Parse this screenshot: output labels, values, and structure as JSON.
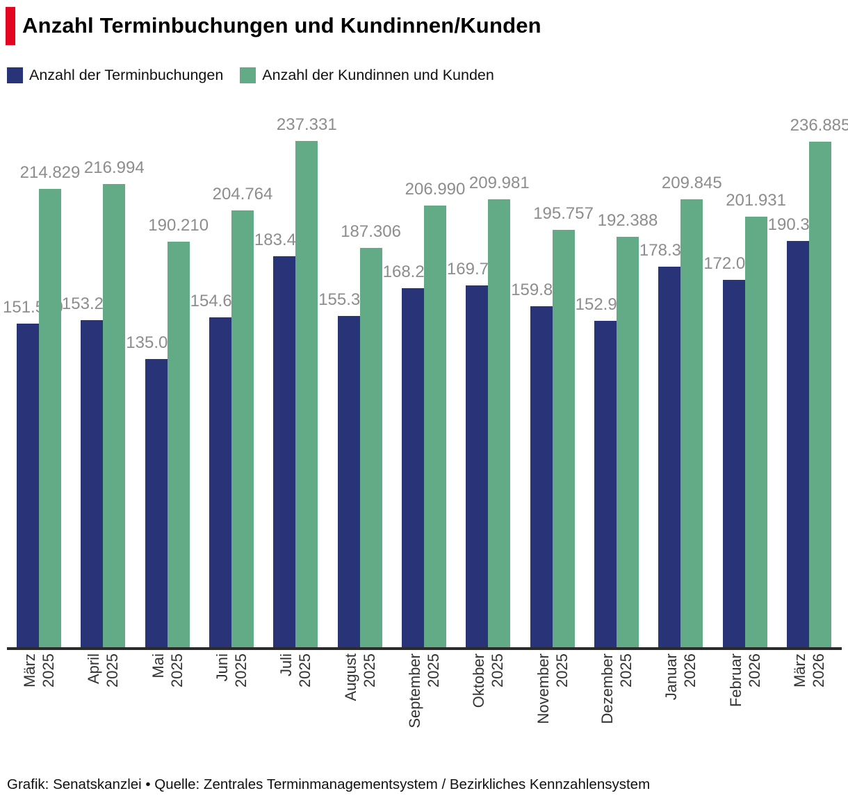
{
  "header": {
    "title": "Anzahl Terminbuchungen und Kundinnen/Kunden",
    "accent_color": "#e40521"
  },
  "legend": {
    "items": [
      {
        "label": "Anzahl der Terminbuchungen",
        "color": "#293377"
      },
      {
        "label": "Anzahl der Kundinnen und Kunden",
        "color": "#63ab86"
      }
    ]
  },
  "chart_data": {
    "type": "bar",
    "title": "Anzahl Terminbuchungen und Kundinnen/Kunden",
    "categories": [
      {
        "month": "März",
        "year": "2025"
      },
      {
        "month": "April",
        "year": "2025"
      },
      {
        "month": "Mai",
        "year": "2025"
      },
      {
        "month": "Juni",
        "year": "2025"
      },
      {
        "month": "Juli",
        "year": "2025"
      },
      {
        "month": "August",
        "year": "2025"
      },
      {
        "month": "September",
        "year": "2025"
      },
      {
        "month": "Oktober",
        "year": "2025"
      },
      {
        "month": "November",
        "year": "2025"
      },
      {
        "month": "Dezember",
        "year": "2025"
      },
      {
        "month": "Januar",
        "year": "2026"
      },
      {
        "month": "Februar",
        "year": "2026"
      },
      {
        "month": "März",
        "year": "2026"
      }
    ],
    "series": [
      {
        "name": "Anzahl der Terminbuchungen",
        "color": "#293377",
        "values": [
          151570,
          153208,
          135027,
          154621,
          183404,
          155394,
          168206,
          169707,
          159816,
          152973,
          178331,
          172080,
          190333
        ],
        "labels": [
          "151.570",
          "153.208",
          "135.027",
          "154.621",
          "183.404",
          "155.394",
          "168.206",
          "169.707",
          "159.816",
          "152.973",
          "178.331",
          "172.080",
          "190.333"
        ]
      },
      {
        "name": "Anzahl der Kundinnen und Kunden",
        "color": "#63ab86",
        "values": [
          214829,
          216994,
          190210,
          204764,
          237331,
          187306,
          206990,
          209981,
          195757,
          192388,
          209845,
          201931,
          236885
        ],
        "labels": [
          "214.829",
          "216.994",
          "190.210",
          "204.764",
          "237.331",
          "187.306",
          "206.990",
          "209.981",
          "195.757",
          "192.388",
          "209.845",
          "201.931",
          "236.885"
        ]
      }
    ],
    "xlabel": "",
    "ylabel": "",
    "ylim": [
      0,
      250000
    ],
    "grid": "off",
    "y_axis_visible": false,
    "legend_position": "top",
    "value_label_color": "#8d8d8d",
    "axis_line_color": "#2b2b2b"
  },
  "footer": {
    "text": "Grafik: Senatskanzlei • Quelle: Zentrales Terminmanagementsystem / Bezirkliches Kennzahlensystem"
  }
}
